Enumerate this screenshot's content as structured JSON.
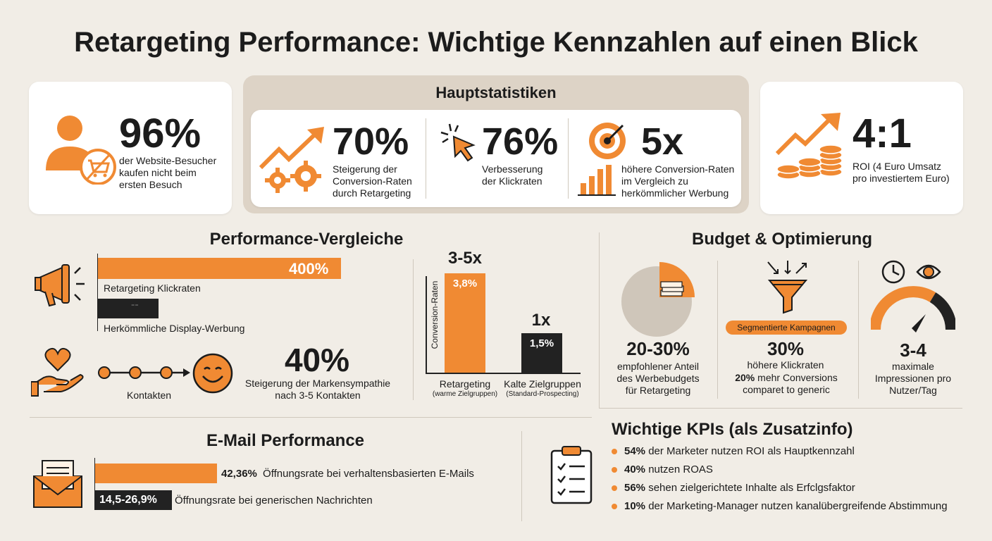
{
  "title": "Retargeting Performance: Wichtige Kennzahlen auf einen Blick",
  "colors": {
    "accent": "#f08a33",
    "dark": "#222222",
    "background": "#f1ede6",
    "panel": "#ddd3c6"
  },
  "left_card": {
    "value": "96%",
    "text": "der Website-Besucher kaufen nicht beim ersten Besuch",
    "icon": "user-no-cart-icon"
  },
  "main_stats": {
    "heading": "Hauptstatistiken",
    "items": [
      {
        "value": "70%",
        "text": "Steigerung der Conversion-Raten durch Retargeting",
        "icon": "trend-gears-icon"
      },
      {
        "value": "76%",
        "text": "Verbesserung der Klickraten",
        "icon": "cursor-click-icon"
      },
      {
        "value": "5x",
        "text": "höhere Conversion-Raten im Vergleich zu herkömmlicher Werbung",
        "icon": "target-bars-icon"
      }
    ]
  },
  "right_card": {
    "value": "4:1",
    "text": "ROI (4 Euro Umsatz pro investiertem Euro)",
    "icon": "coins-trend-icon"
  },
  "performance": {
    "heading": "Performance-Vergleiche",
    "bars": [
      {
        "label": "Retargeting Klickraten",
        "value_label": "400%",
        "value": 400,
        "color": "#f08a33"
      },
      {
        "label": "Herkömmliche Display-Werbung",
        "value_label": "--",
        "value": 100,
        "color": "#222222"
      }
    ],
    "contacts_label": "Kontakten",
    "sympathy": {
      "value": "40%",
      "text": "Steigerung der Markensympathie nach 3-5 Kontakten"
    }
  },
  "conversion_chart": {
    "ylabel": "Conversion-Raten",
    "bars": [
      {
        "top": "3-5x",
        "value_label": "3,8%",
        "value": 3.8,
        "name": "Retargeting",
        "sub": "(warme Zielgruppen)",
        "color": "#f08a33"
      },
      {
        "top": "1x",
        "value_label": "1,5%",
        "value": 1.5,
        "name": "Kalte Zielgruppen",
        "sub": "(Standard-Prospecting)",
        "color": "#222222"
      }
    ]
  },
  "budget": {
    "heading": "Budget & Optimierung",
    "items": [
      {
        "value": "20-30%",
        "text": "empfohlener Anteil des Werbebudgets für Retargeting",
        "share": 0.25,
        "icon": "pie-money-icon"
      },
      {
        "badge": "Segmentierte Kampagnen",
        "value": "30%",
        "text": "höhere Klickraten",
        "bold": "20%",
        "text2": "mehr Conversions comparet to generic",
        "icon": "funnel-icon"
      },
      {
        "value": "3-4",
        "text": "maximale Impressionen pro Nutzer/Tag",
        "icon": "gauge-clock-eye-icon"
      }
    ]
  },
  "email": {
    "heading": "E-Mail Performance",
    "bars": [
      {
        "value_label": "42,36%",
        "value": 42.36,
        "text": "Öffnungsrate bei verhaltensbasierten E-Mails",
        "color": "#f08a33"
      },
      {
        "value_label": "14,5-26,9%",
        "text": "Öffnungsrate bei generischen Nachrichten",
        "color": "#222222"
      }
    ]
  },
  "kpis": {
    "heading": "Wichtige KPIs (als Zusatzinfo)",
    "items": [
      {
        "bold": "54%",
        "text": "der Marketer nutzen ROI als Hauptkennzahl"
      },
      {
        "bold": "40%",
        "text": "nutzen ROAS"
      },
      {
        "bold": "56%",
        "text": "sehen zielgerichtete Inhalte als Erfclgsfaktor"
      },
      {
        "bold": "10%",
        "text": "der Marketing-Manager nutzen kanalübergreifende Abstimmung"
      }
    ]
  }
}
